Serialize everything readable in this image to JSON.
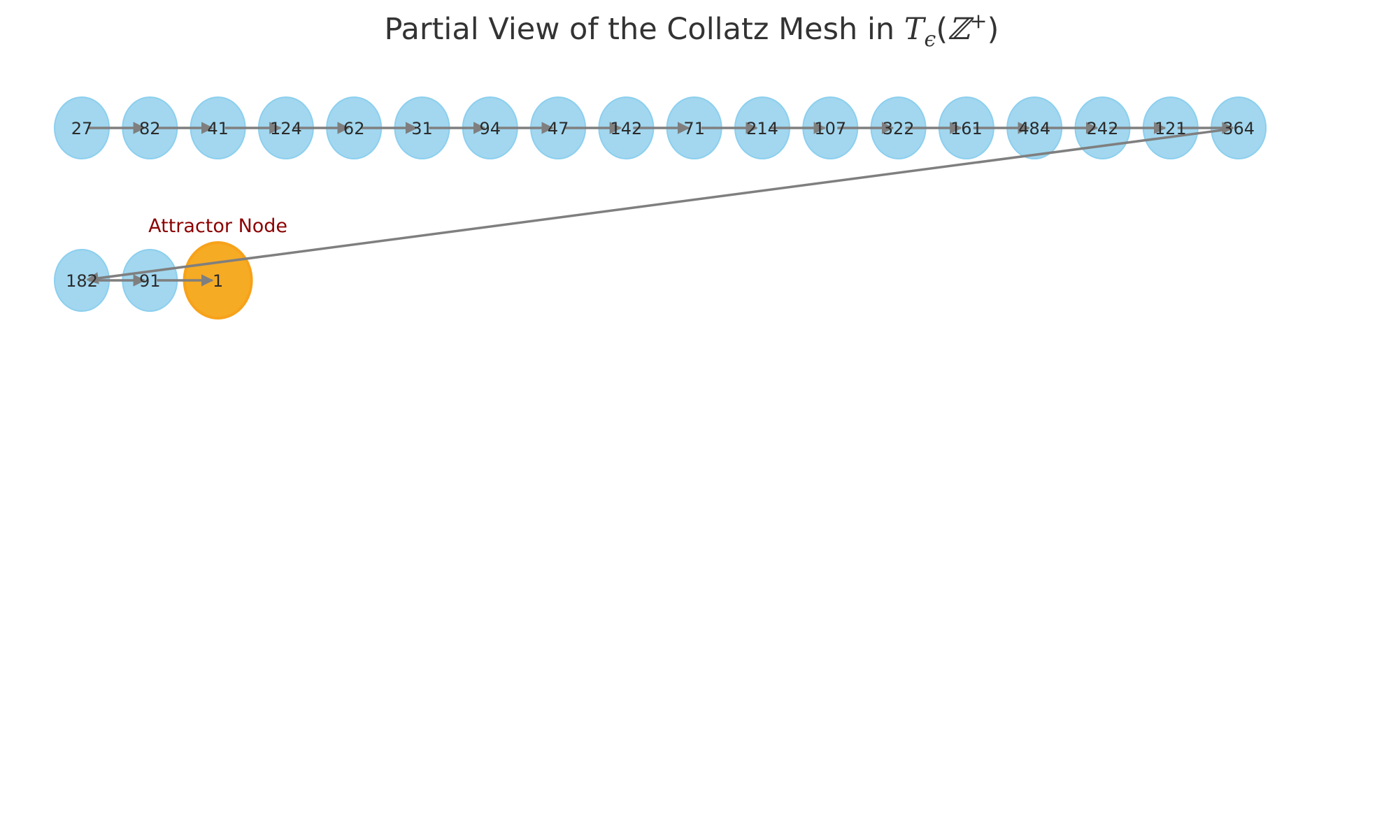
{
  "title": {
    "prefix": "Partial View of the Collatz Mesh in ",
    "T": "T",
    "sub": "ϵ",
    "open_paren": "(",
    "Z": "ℤ",
    "sup": "+",
    "close_paren": ")"
  },
  "colors": {
    "node_fill": "#9fd6ee",
    "node_stroke": "#8ccfee",
    "attractor_fill": "#f6a81d",
    "attractor_stroke": "#f7a21a",
    "edge": "#7f7f7f",
    "annotation": "#8b0000"
  },
  "annotation": {
    "label": "Attractor Node",
    "target": "1"
  },
  "nodes": [
    {
      "id": "27",
      "label": "27",
      "row": 0,
      "col": 0
    },
    {
      "id": "82",
      "label": "82",
      "row": 0,
      "col": 1
    },
    {
      "id": "41",
      "label": "41",
      "row": 0,
      "col": 2
    },
    {
      "id": "124",
      "label": "124",
      "row": 0,
      "col": 3
    },
    {
      "id": "62",
      "label": "62",
      "row": 0,
      "col": 4
    },
    {
      "id": "31",
      "label": "31",
      "row": 0,
      "col": 5
    },
    {
      "id": "94",
      "label": "94",
      "row": 0,
      "col": 6
    },
    {
      "id": "47",
      "label": "47",
      "row": 0,
      "col": 7
    },
    {
      "id": "142",
      "label": "142",
      "row": 0,
      "col": 8
    },
    {
      "id": "71",
      "label": "71",
      "row": 0,
      "col": 9
    },
    {
      "id": "214",
      "label": "214",
      "row": 0,
      "col": 10
    },
    {
      "id": "107",
      "label": "107",
      "row": 0,
      "col": 11
    },
    {
      "id": "322",
      "label": "322",
      "row": 0,
      "col": 12
    },
    {
      "id": "161",
      "label": "161",
      "row": 0,
      "col": 13
    },
    {
      "id": "484",
      "label": "484",
      "row": 0,
      "col": 14
    },
    {
      "id": "242",
      "label": "242",
      "row": 0,
      "col": 15
    },
    {
      "id": "121",
      "label": "121",
      "row": 0,
      "col": 16
    },
    {
      "id": "364",
      "label": "364",
      "row": 0,
      "col": 17
    },
    {
      "id": "182",
      "label": "182",
      "row": 1,
      "col": 0
    },
    {
      "id": "91",
      "label": "91",
      "row": 1,
      "col": 1
    },
    {
      "id": "1",
      "label": "1",
      "row": 1,
      "col": 2,
      "attractor": true
    }
  ],
  "edges": [
    [
      "27",
      "82"
    ],
    [
      "82",
      "41"
    ],
    [
      "41",
      "124"
    ],
    [
      "124",
      "62"
    ],
    [
      "62",
      "31"
    ],
    [
      "31",
      "94"
    ],
    [
      "94",
      "47"
    ],
    [
      "47",
      "142"
    ],
    [
      "142",
      "71"
    ],
    [
      "71",
      "214"
    ],
    [
      "214",
      "107"
    ],
    [
      "107",
      "322"
    ],
    [
      "322",
      "161"
    ],
    [
      "161",
      "484"
    ],
    [
      "484",
      "242"
    ],
    [
      "242",
      "121"
    ],
    [
      "121",
      "364"
    ],
    [
      "364",
      "182"
    ],
    [
      "182",
      "91"
    ],
    [
      "91",
      "1"
    ]
  ]
}
